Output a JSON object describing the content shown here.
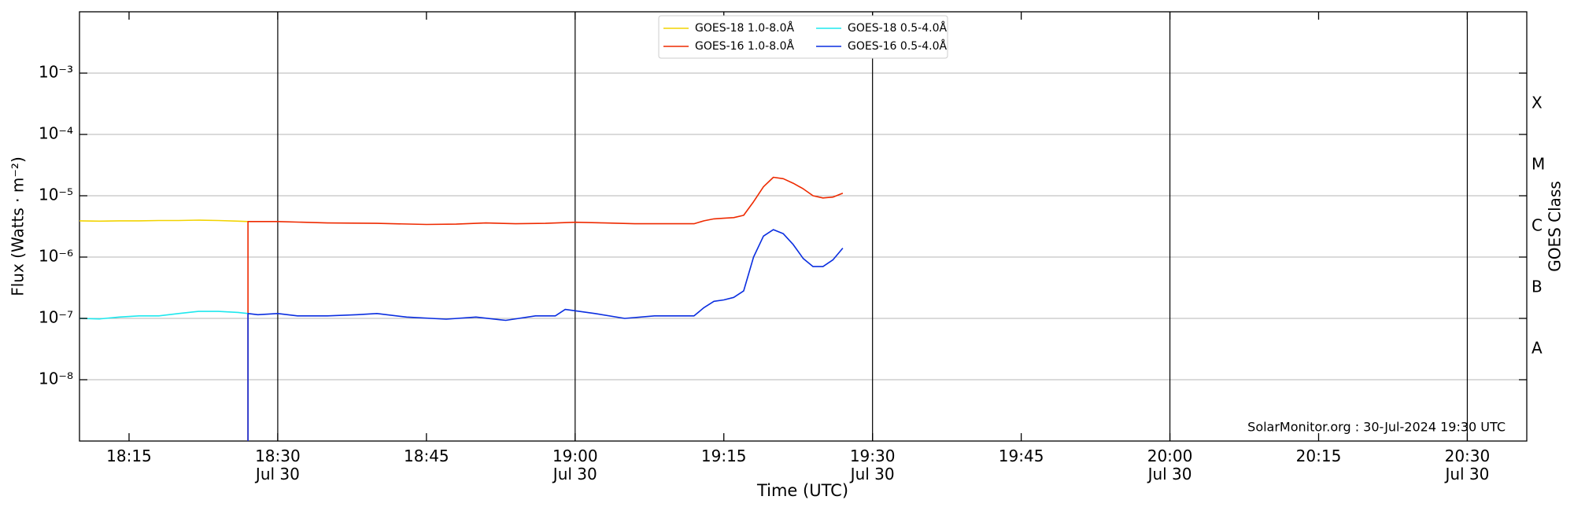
{
  "chart_data": {
    "type": "line",
    "xlabel": "Time (UTC)",
    "ylabel": "Flux (Watts · m⁻²)",
    "y2label": "GOES Class",
    "annotation": "SolarMonitor.org : 30-Jul-2024 19:30 UTC",
    "yscale": "log",
    "grid": true,
    "legend": "upper center",
    "xlim": [
      "18:10",
      "20:36"
    ],
    "xticks": [
      "18:15",
      {
        "value": "18:30",
        "label": "18:30\nJul 30"
      },
      "18:45",
      {
        "value": "19:00",
        "label": "19:00\nJul 30"
      },
      "19:15",
      {
        "value": "19:30",
        "label": "19:30\nJul 30"
      },
      "19:45",
      {
        "value": "20:00",
        "label": "20:00\nJul 30"
      },
      "20:15",
      {
        "value": "20:30",
        "label": "20:30\nJul 30"
      }
    ],
    "ylim": [
      1e-09,
      0.01
    ],
    "yticks": [
      {
        "value": 1e-08,
        "label": "10⁻⁸"
      },
      {
        "value": 1e-07,
        "label": "10⁻⁷"
      },
      {
        "value": 1e-06,
        "label": "10⁻⁶"
      },
      {
        "value": 1e-05,
        "label": "10⁻⁵"
      },
      {
        "value": 0.0001,
        "label": "10⁻⁴"
      },
      {
        "value": 0.001,
        "label": "10⁻³"
      }
    ],
    "class_labels": [
      "A",
      "B",
      "C",
      "M",
      "X"
    ],
    "class_thresholds": [
      1e-08,
      1e-07,
      1e-06,
      1e-05,
      0.0001
    ],
    "series": [
      {
        "name": "GOES-18 1.0-8.0Å",
        "color": "#f2d300",
        "x": [
          "18:10",
          "18:12",
          "18:14",
          "18:16",
          "18:18",
          "18:20",
          "18:22",
          "18:24",
          "18:26",
          "18:27"
        ],
        "values": [
          3.9e-06,
          3.85e-06,
          3.9e-06,
          3.9e-06,
          3.95e-06,
          3.95e-06,
          4e-06,
          3.95e-06,
          3.85e-06,
          3.8e-06
        ]
      },
      {
        "name": "GOES-16 1.0-8.0Å",
        "color": "#ee2a00",
        "x": [
          "18:27",
          "18:27",
          "18:30",
          "18:35",
          "18:40",
          "18:45",
          "18:48",
          "18:51",
          "18:54",
          "18:57",
          "19:00",
          "19:03",
          "19:06",
          "19:09",
          "19:12",
          "19:13",
          "19:14",
          "19:15",
          "19:16",
          "19:17",
          "19:18",
          "19:19",
          "19:20",
          "19:21",
          "19:22",
          "19:23",
          "19:24",
          "19:25",
          "19:26",
          "19:27"
        ],
        "values": [
          1e-09,
          3.8e-06,
          3.8e-06,
          3.6e-06,
          3.55e-06,
          3.4e-06,
          3.45e-06,
          3.6e-06,
          3.5e-06,
          3.55e-06,
          3.7e-06,
          3.6e-06,
          3.5e-06,
          3.5e-06,
          3.5e-06,
          3.9e-06,
          4.2e-06,
          4.3e-06,
          4.4e-06,
          4.8e-06,
          8e-06,
          1.4e-05,
          2e-05,
          1.9e-05,
          1.6e-05,
          1.3e-05,
          1e-05,
          9.2e-06,
          9.5e-06,
          1.1e-05
        ]
      },
      {
        "name": "GOES-18 0.5-4.0Å",
        "color": "#1ee8ee",
        "x": [
          "18:10",
          "18:12",
          "18:14",
          "18:16",
          "18:18",
          "18:20",
          "18:22",
          "18:24",
          "18:26",
          "18:27"
        ],
        "values": [
          1e-07,
          9.8e-08,
          1.05e-07,
          1.1e-07,
          1.1e-07,
          1.2e-07,
          1.3e-07,
          1.3e-07,
          1.25e-07,
          1.2e-07
        ]
      },
      {
        "name": "GOES-16 0.5-4.0Å",
        "color": "#0a2ee0",
        "x": [
          "18:27",
          "18:27",
          "18:28",
          "18:30",
          "18:32",
          "18:35",
          "18:38",
          "18:40",
          "18:43",
          "18:47",
          "18:50",
          "18:53",
          "18:56",
          "18:58",
          "18:59",
          "19:02",
          "19:05",
          "19:08",
          "19:10",
          "19:12",
          "19:13",
          "19:14",
          "19:15",
          "19:16",
          "19:17",
          "19:18",
          "19:19",
          "19:20",
          "19:21",
          "19:22",
          "19:23",
          "19:24",
          "19:25",
          "19:26",
          "19:27"
        ],
        "values": [
          1e-09,
          1.2e-07,
          1.15e-07,
          1.2e-07,
          1.1e-07,
          1.1e-07,
          1.15e-07,
          1.2e-07,
          1.05e-07,
          9.7e-08,
          1.05e-07,
          9.3e-08,
          1.1e-07,
          1.1e-07,
          1.4e-07,
          1.2e-07,
          1e-07,
          1.1e-07,
          1.1e-07,
          1.1e-07,
          1.5e-07,
          1.9e-07,
          2e-07,
          2.2e-07,
          2.8e-07,
          1e-06,
          2.2e-06,
          2.8e-06,
          2.4e-06,
          1.6e-06,
          9.5e-07,
          7e-07,
          7e-07,
          9e-07,
          1.4e-06
        ]
      }
    ]
  }
}
